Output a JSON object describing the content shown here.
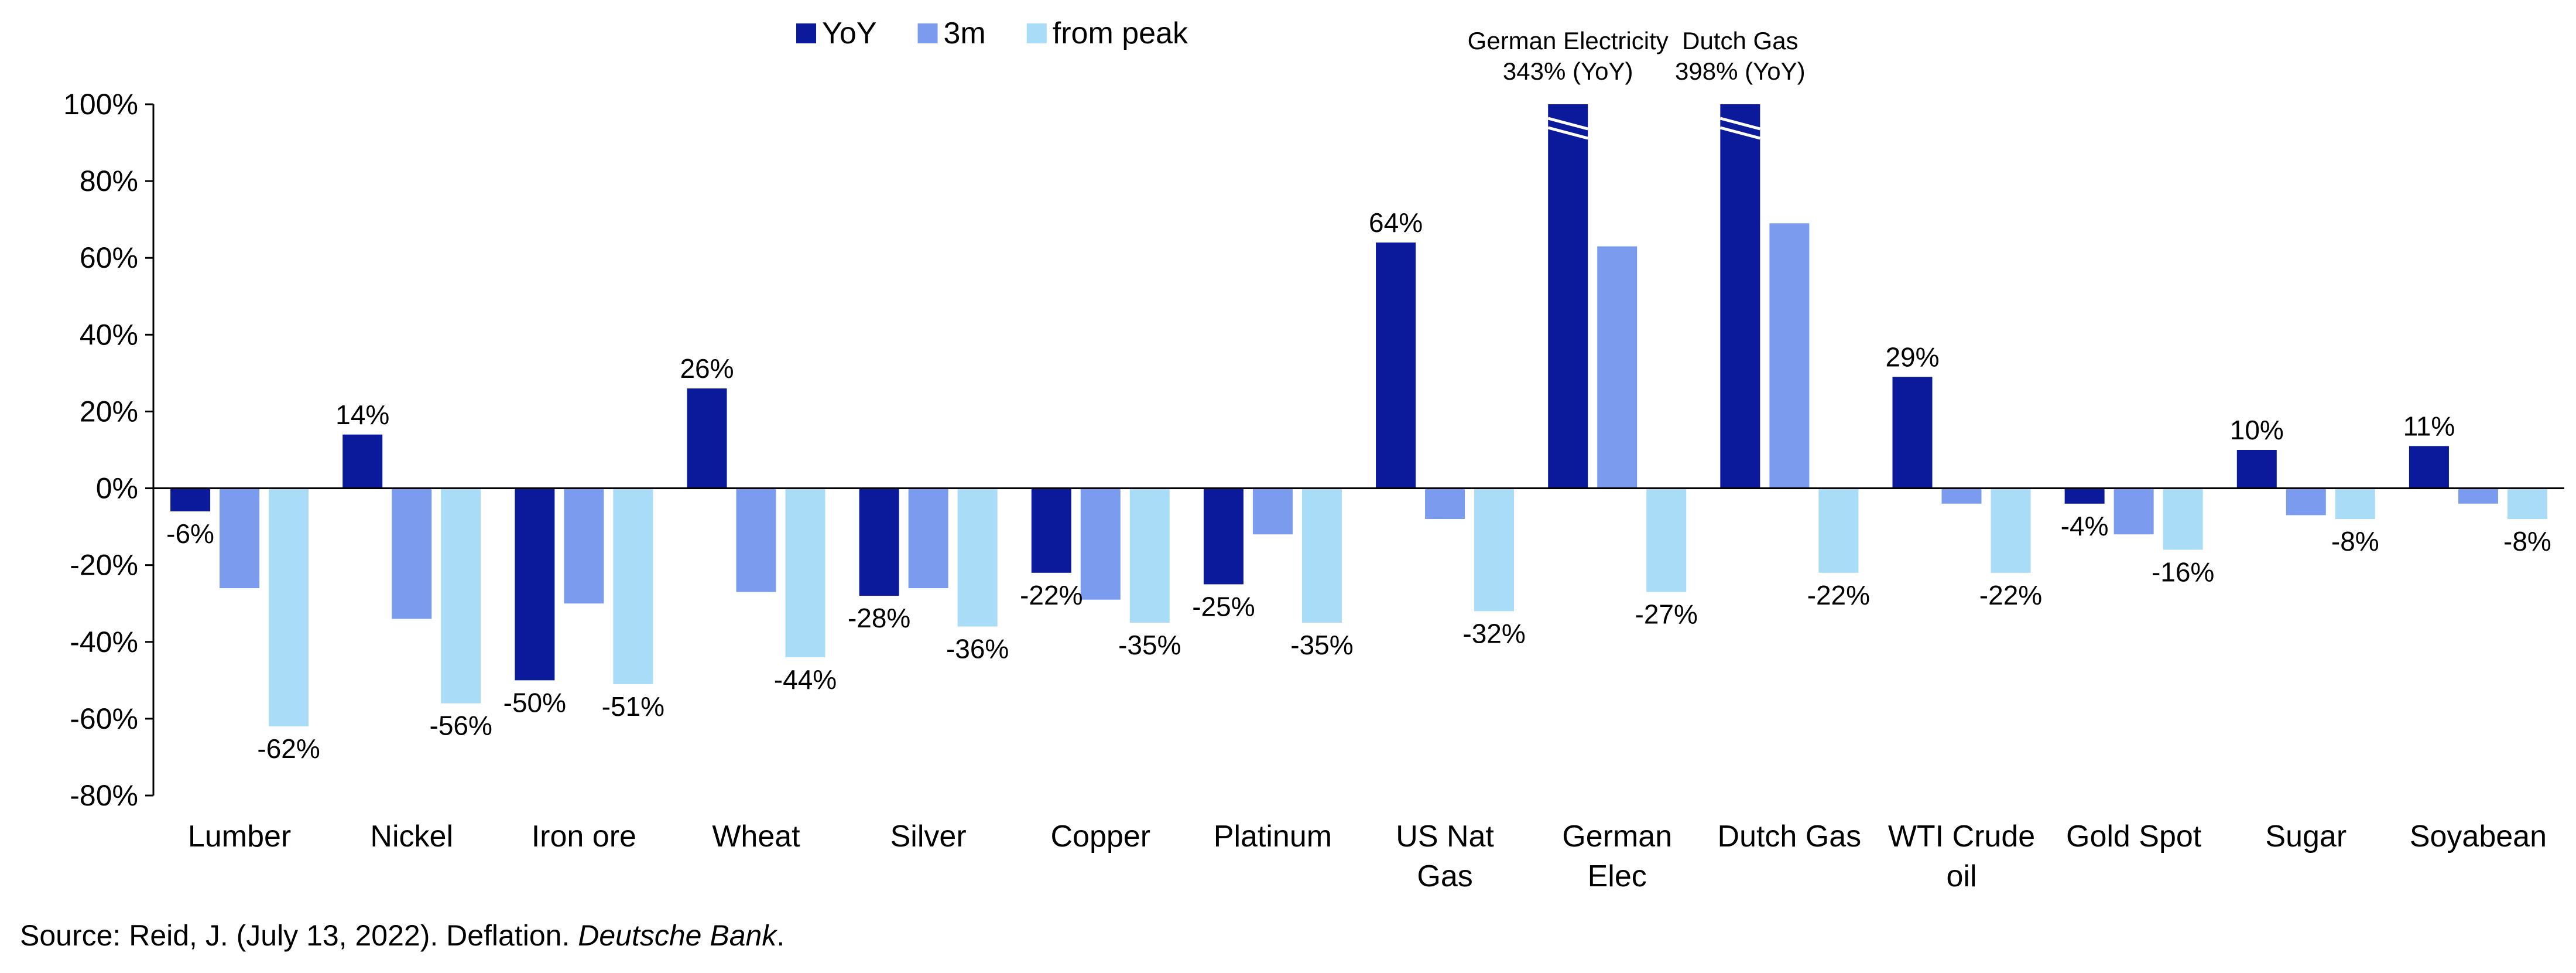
{
  "chart_data": {
    "type": "bar",
    "categories": [
      "Lumber",
      "Nickel",
      "Iron ore",
      "Wheat",
      "Silver",
      "Copper",
      "Platinum",
      "US Nat Gas",
      "German Elec",
      "Dutch Gas",
      "WTI Crude oil",
      "Gold Spot",
      "Sugar",
      "Soyabean"
    ],
    "category_lines": [
      [
        "Lumber"
      ],
      [
        "Nickel"
      ],
      [
        "Iron ore"
      ],
      [
        "Wheat"
      ],
      [
        "Silver"
      ],
      [
        "Copper"
      ],
      [
        "Platinum"
      ],
      [
        "US Nat",
        "Gas"
      ],
      [
        "German",
        "Elec"
      ],
      [
        "Dutch Gas"
      ],
      [
        "WTI Crude",
        "oil"
      ],
      [
        "Gold Spot"
      ],
      [
        "Sugar"
      ],
      [
        "Soyabean"
      ]
    ],
    "series": [
      {
        "name": "YoY",
        "color": "#0a1a9a",
        "values": [
          -6,
          14,
          -50,
          26,
          -28,
          -22,
          -25,
          64,
          343,
          398,
          29,
          -4,
          10,
          11
        ]
      },
      {
        "name": "3m",
        "color": "#7b9cee",
        "values": [
          -26,
          -34,
          -30,
          -27,
          -26,
          -29,
          -12,
          -8,
          63,
          69,
          -4,
          -12,
          -7,
          -4
        ]
      },
      {
        "name": "from peak",
        "color": "#a9dcf7",
        "values": [
          -62,
          -56,
          -51,
          -44,
          -36,
          -35,
          -35,
          -32,
          -27,
          -22,
          -22,
          -16,
          -8,
          -8
        ]
      }
    ],
    "data_labels": {
      "YoY": [
        "-6%",
        "14%",
        "-50%",
        "26%",
        "-28%",
        "-22%",
        "-25%",
        "64%",
        "",
        "",
        "29%",
        "-4%",
        "10%",
        "11%"
      ],
      "3m": [
        "",
        "",
        "",
        "",
        "",
        "",
        "",
        "",
        "",
        "",
        "",
        "",
        "",
        ""
      ],
      "from peak": [
        "-62%",
        "-56%",
        "-51%",
        "-44%",
        "-36%",
        "-35%",
        "-35%",
        "-32%",
        "-27%",
        "-22%",
        "-22%",
        "-16%",
        "-8%",
        "-8%"
      ]
    },
    "callouts": [
      {
        "category": "German Elec",
        "lines": [
          "German Electricity",
          "343% (YoY)"
        ]
      },
      {
        "category": "Dutch Gas",
        "lines": [
          "Dutch Gas",
          "398% (YoY)"
        ]
      }
    ],
    "y_ticks": [
      100,
      80,
      60,
      40,
      20,
      0,
      -20,
      -40,
      -60,
      -80
    ],
    "y_tick_labels": [
      "100%",
      "80%",
      "60%",
      "40%",
      "20%",
      "0%",
      "-20%",
      "-40%",
      "-60%",
      "-80%"
    ],
    "ylim": [
      -80,
      100
    ],
    "axis_break": "bars above 100% are truncated with a break mark",
    "grid": false,
    "legend_position": "top-center"
  },
  "source": {
    "prefix": "Source: Reid, J. (July 13, 2022). Deflation. ",
    "publication": "Deutsche Bank",
    "suffix": "."
  }
}
